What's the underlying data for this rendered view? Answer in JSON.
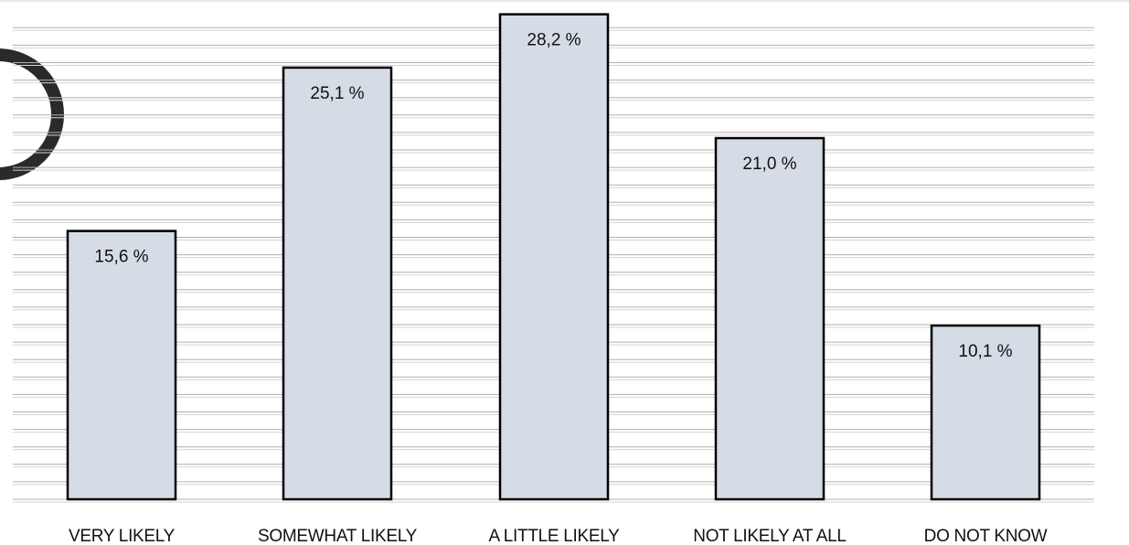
{
  "chart_data": {
    "type": "bar",
    "title": "",
    "xlabel": "",
    "ylabel": "",
    "categories": [
      "VERY LIKELY",
      "SOMEWHAT LIKELY",
      "A LITTLE LIKELY",
      "NOT LIKELY AT ALL",
      "DO NOT KNOW"
    ],
    "values": [
      15.6,
      25.1,
      28.2,
      21.0,
      10.1
    ],
    "value_labels": [
      "15,6 %",
      "25,1 %",
      "28,2 %",
      "21,0 %",
      "10,1 %"
    ],
    "unit": "%",
    "ylim": [
      0,
      28.5
    ],
    "grid": true,
    "legend": "none"
  },
  "colors": {
    "bar_fill": "#d6dce5",
    "bar_stroke": "#000000",
    "gridline": "#b0b0b0",
    "text": "#111111",
    "decoration_ring": "#2a2a2a"
  }
}
